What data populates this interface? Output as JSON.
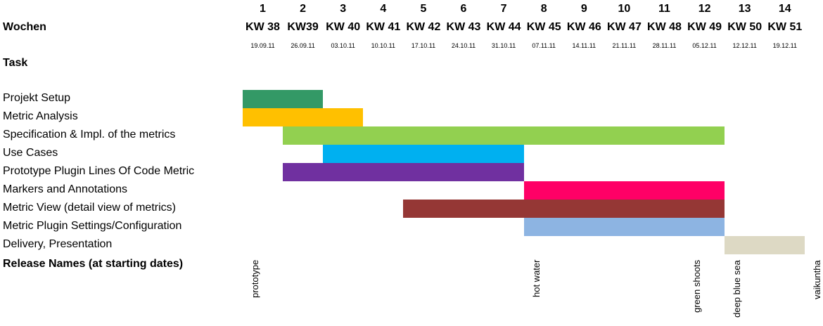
{
  "labels": {
    "weeks": "Wochen",
    "task": "Task",
    "release": "Release Names (at starting dates)"
  },
  "chart_data": {
    "type": "gantt",
    "week_numbers": [
      "1",
      "2",
      "3",
      "4",
      "5",
      "6",
      "7",
      "8",
      "9",
      "10",
      "11",
      "12",
      "13",
      "14"
    ],
    "calendar_weeks": [
      "KW 38",
      "KW39",
      "KW 40",
      "KW 41",
      "KW 42",
      "KW 43",
      "KW 44",
      "KW 45",
      "KW 46",
      "KW 47",
      "KW 48",
      "KW 49",
      "KW 50",
      "KW 51"
    ],
    "dates": [
      "19.09.11",
      "26.09.11",
      "03.10.11",
      "10.10.11",
      "17.10.11",
      "24.10.11",
      "31.10.11",
      "07.11.11",
      "14.11.11",
      "21.11.11",
      "28.11.11",
      "05.12.11",
      "12.12.11",
      "19.12.11"
    ],
    "tasks": [
      {
        "name": "Projekt Setup",
        "start_week": 1,
        "end_week": 2,
        "color": "#339966"
      },
      {
        "name": "Metric Analysis",
        "start_week": 1,
        "end_week": 3,
        "color": "#FFC000"
      },
      {
        "name": "Specification & Impl. of the metrics",
        "start_week": 2,
        "end_week": 12,
        "color": "#92D050"
      },
      {
        "name": "Use Cases",
        "start_week": 3,
        "end_week": 7,
        "color": "#00B0F0"
      },
      {
        "name": "Prototype Plugin Lines Of Code Metric",
        "start_week": 2,
        "end_week": 7,
        "color": "#7030A0"
      },
      {
        "name": "Markers and Annotations",
        "start_week": 8,
        "end_week": 12,
        "color": "#FF0066"
      },
      {
        "name": "Metric View (detail view of metrics)",
        "start_week": 5,
        "end_week": 12,
        "color": "#953735"
      },
      {
        "name": "Metric Plugin Settings/Configuration",
        "start_week": 8,
        "end_week": 12,
        "color": "#8DB4E2"
      },
      {
        "name": "Delivery, Presentation",
        "start_week": 13,
        "end_week": 14,
        "color": "#DDD9C4"
      }
    ],
    "releases": [
      {
        "name": "prototype",
        "week": 1
      },
      {
        "name": "hot water",
        "week": 8
      },
      {
        "name": "green shoots",
        "week": 12
      },
      {
        "name": "deep blue sea",
        "week": 13
      },
      {
        "name": "vaikuntha",
        "week": 15
      }
    ]
  }
}
